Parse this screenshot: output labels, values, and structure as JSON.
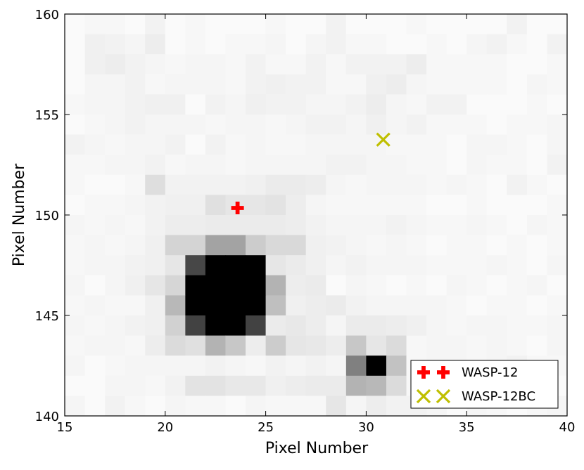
{
  "chart_data": {
    "type": "heatmap",
    "xlabel": "Pixel Number",
    "ylabel": "Pixel Number",
    "xlim": [
      15,
      40
    ],
    "ylim": [
      140,
      160
    ],
    "xticks": [
      "15",
      "20",
      "25",
      "30",
      "35",
      "40"
    ],
    "yticks": [
      "140",
      "145",
      "150",
      "155",
      "160"
    ],
    "colormap": "gray_r",
    "grid": false,
    "legend_position": "bottom-right",
    "cell_value_range": [
      0,
      1
    ],
    "grid_x_range": [
      15,
      40
    ],
    "grid_y_range": [
      140,
      160
    ],
    "grid_shape": [
      20,
      25
    ],
    "intensity": [
      [
        0.02,
        0.03,
        0.03,
        0.02,
        0.05,
        0.02,
        0.03,
        0.02,
        0.02,
        0.02,
        0.03,
        0.02,
        0.02,
        0.05,
        0.02,
        0.02,
        0.02,
        0.03,
        0.02,
        0.02,
        0.02,
        0.02,
        0.05,
        0.02,
        0.02
      ],
      [
        0.02,
        0.06,
        0.05,
        0.04,
        0.07,
        0.02,
        0.03,
        0.02,
        0.03,
        0.03,
        0.04,
        0.02,
        0.04,
        0.05,
        0.03,
        0.03,
        0.02,
        0.02,
        0.03,
        0.02,
        0.04,
        0.05,
        0.03,
        0.02,
        0.05
      ],
      [
        0.02,
        0.06,
        0.07,
        0.05,
        0.04,
        0.03,
        0.04,
        0.04,
        0.03,
        0.05,
        0.03,
        0.03,
        0.05,
        0.03,
        0.05,
        0.05,
        0.05,
        0.07,
        0.03,
        0.03,
        0.03,
        0.03,
        0.02,
        0.02,
        0.03
      ],
      [
        0.02,
        0.04,
        0.04,
        0.05,
        0.03,
        0.04,
        0.04,
        0.04,
        0.03,
        0.05,
        0.06,
        0.05,
        0.05,
        0.03,
        0.03,
        0.06,
        0.07,
        0.04,
        0.03,
        0.03,
        0.03,
        0.03,
        0.02,
        0.04,
        0.03
      ],
      [
        0.03,
        0.04,
        0.04,
        0.05,
        0.06,
        0.06,
        0.02,
        0.05,
        0.04,
        0.06,
        0.05,
        0.05,
        0.04,
        0.04,
        0.05,
        0.07,
        0.04,
        0.03,
        0.05,
        0.05,
        0.02,
        0.02,
        0.02,
        0.03,
        0.02
      ],
      [
        0.02,
        0.03,
        0.04,
        0.05,
        0.04,
        0.04,
        0.04,
        0.03,
        0.04,
        0.04,
        0.03,
        0.04,
        0.05,
        0.05,
        0.04,
        0.06,
        0.04,
        0.05,
        0.03,
        0.03,
        0.03,
        0.02,
        0.03,
        0.03,
        0.04
      ],
      [
        0.05,
        0.04,
        0.03,
        0.04,
        0.04,
        0.05,
        0.02,
        0.05,
        0.03,
        0.04,
        0.03,
        0.03,
        0.04,
        0.04,
        0.04,
        0.04,
        0.03,
        0.03,
        0.03,
        0.02,
        0.04,
        0.04,
        0.03,
        0.02,
        0.04
      ],
      [
        0.03,
        0.03,
        0.04,
        0.04,
        0.05,
        0.03,
        0.04,
        0.04,
        0.03,
        0.04,
        0.04,
        0.04,
        0.04,
        0.05,
        0.05,
        0.04,
        0.04,
        0.03,
        0.03,
        0.02,
        0.04,
        0.03,
        0.03,
        0.02,
        0.05
      ],
      [
        0.03,
        0.02,
        0.02,
        0.03,
        0.13,
        0.05,
        0.05,
        0.05,
        0.05,
        0.06,
        0.08,
        0.08,
        0.07,
        0.04,
        0.03,
        0.04,
        0.04,
        0.04,
        0.03,
        0.04,
        0.03,
        0.02,
        0.05,
        0.03,
        0.02
      ],
      [
        0.02,
        0.03,
        0.03,
        0.04,
        0.05,
        0.06,
        0.06,
        0.12,
        0.1,
        0.1,
        0.11,
        0.07,
        0.04,
        0.03,
        0.03,
        0.03,
        0.03,
        0.03,
        0.02,
        0.02,
        0.03,
        0.02,
        0.02,
        0.02,
        0.03
      ],
      [
        0.04,
        0.03,
        0.04,
        0.03,
        0.05,
        0.07,
        0.07,
        0.08,
        0.08,
        0.08,
        0.08,
        0.07,
        0.05,
        0.04,
        0.04,
        0.04,
        0.05,
        0.04,
        0.03,
        0.03,
        0.04,
        0.03,
        0.02,
        0.04,
        0.03
      ],
      [
        0.03,
        0.04,
        0.03,
        0.04,
        0.06,
        0.17,
        0.17,
        0.36,
        0.36,
        0.2,
        0.15,
        0.15,
        0.06,
        0.05,
        0.04,
        0.03,
        0.04,
        0.03,
        0.02,
        0.03,
        0.03,
        0.02,
        0.03,
        0.02,
        0.03
      ],
      [
        0.03,
        0.04,
        0.04,
        0.05,
        0.06,
        0.1,
        0.72,
        1.0,
        1.0,
        1.0,
        0.1,
        0.08,
        0.06,
        0.04,
        0.05,
        0.04,
        0.04,
        0.04,
        0.03,
        0.03,
        0.03,
        0.04,
        0.03,
        0.02,
        0.04
      ],
      [
        0.04,
        0.02,
        0.04,
        0.06,
        0.1,
        0.16,
        1.0,
        1.0,
        1.0,
        1.0,
        0.3,
        0.07,
        0.08,
        0.02,
        0.04,
        0.03,
        0.02,
        0.03,
        0.02,
        0.04,
        0.03,
        0.02,
        0.03,
        0.04,
        0.02
      ],
      [
        0.03,
        0.04,
        0.03,
        0.03,
        0.06,
        0.28,
        1.0,
        1.0,
        1.0,
        1.0,
        0.25,
        0.06,
        0.07,
        0.08,
        0.05,
        0.04,
        0.04,
        0.04,
        0.04,
        0.03,
        0.02,
        0.03,
        0.03,
        0.02,
        0.03
      ],
      [
        0.04,
        0.03,
        0.04,
        0.05,
        0.06,
        0.18,
        0.74,
        1.0,
        1.0,
        0.74,
        0.08,
        0.09,
        0.07,
        0.04,
        0.08,
        0.08,
        0.07,
        0.06,
        0.04,
        0.03,
        0.04,
        0.04,
        0.03,
        0.03,
        0.04
      ],
      [
        0.03,
        0.04,
        0.04,
        0.03,
        0.07,
        0.14,
        0.12,
        0.3,
        0.22,
        0.07,
        0.2,
        0.1,
        0.09,
        0.07,
        0.22,
        0.1,
        0.14,
        0.03,
        0.04,
        0.04,
        0.03,
        0.04,
        0.03,
        0.02,
        0.04
      ],
      [
        0.04,
        0.02,
        0.03,
        0.04,
        0.04,
        0.04,
        0.04,
        0.05,
        0.04,
        0.03,
        0.05,
        0.04,
        0.05,
        0.04,
        0.5,
        1.0,
        0.24,
        0.03,
        0.04,
        0.04,
        0.03,
        0.04,
        0.05,
        0.03,
        0.03
      ],
      [
        0.02,
        0.02,
        0.04,
        0.04,
        0.03,
        0.05,
        0.11,
        0.11,
        0.09,
        0.09,
        0.06,
        0.07,
        0.08,
        0.08,
        0.3,
        0.28,
        0.14,
        0.03,
        0.04,
        0.04,
        0.03,
        0.06,
        0.03,
        0.04,
        0.02
      ],
      [
        0.04,
        0.02,
        0.05,
        0.03,
        0.02,
        0.04,
        0.03,
        0.03,
        0.02,
        0.04,
        0.03,
        0.03,
        0.03,
        0.1,
        0.04,
        0.07,
        0.05,
        0.05,
        0.04,
        0.02,
        0.04,
        0.03,
        0.02,
        0.03,
        0.04
      ]
    ],
    "markers": [
      {
        "name": "WASP-12",
        "x": 23.6,
        "y": 150.35,
        "symbol": "plus",
        "color": "#ff0000"
      },
      {
        "name": "WASP-12BC",
        "x": 30.85,
        "y": 153.75,
        "symbol": "x",
        "color": "#bfbf00"
      }
    ]
  }
}
